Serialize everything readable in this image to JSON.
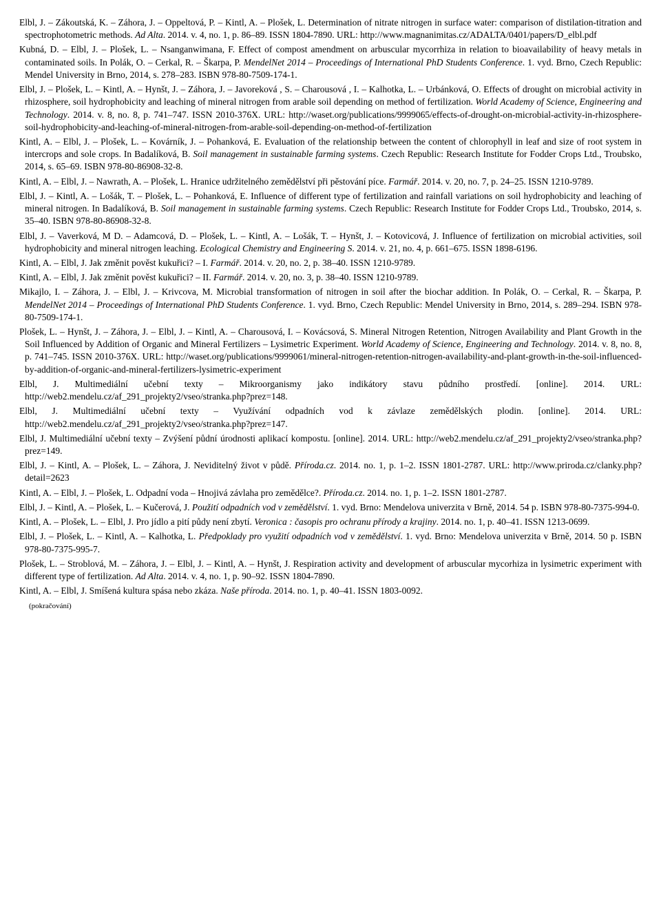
{
  "entries": [
    {
      "text": "Elbl, J. – Zákoutská, K. – Záhora, J. – Oppeltová, P. – Kintl, A. – Plošek, L. Determination of nitrate nitrogen in surface water: comparison of distilation-titration and spectrophotometric methods. |i|Ad Alta|/i|. 2014. v. 4, no. 1, p. 86–89. ISSN 1804-7890. URL: http://www.magnanimitas.cz/ADALTA/0401/papers/D_elbl.pdf"
    },
    {
      "text": "Kubná, D. – Elbl, J. – Plošek, L. – Nsanganwimana, F. Effect of compost amendment on arbuscular mycorrhiza in relation to bioavailability of heavy metals in contaminated soils. In Polák, O. – Cerkal, R. – Škarpa, P. |i|MendelNet 2014 – Proceedings of International PhD Students Conference|/i|. 1. vyd. Brno, Czech Republic: Mendel University in Brno, 2014, s. 278–283. ISBN 978-80-7509-174-1."
    },
    {
      "text": "Elbl, J. – Plošek, L. – Kintl, A. – Hynšt, J. – Záhora, J. – Javoreková , S. – Charousová , I. – Kalhotka, L. – Urbánková, O. Effects of drought on microbial activity in rhizosphere, soil hydrophobicity and leaching of mineral nitrogen from arable soil depending on method of fertilization. |i|World Academy of Science, Engineering and Technology|/i|. 2014. v. 8, no. 8, p. 741–747. ISSN 2010-376X. URL: http://waset.org/publications/9999065/effects-of-drought-on-microbial-activity-in-rhizosphere-soil-hydrophobicity-and-leaching-of-mineral-nitrogen-from-arable-soil-depending-on-method-of-fertilization"
    },
    {
      "text": "Kintl, A. – Elbl, J. – Plošek, L. – Kovárník, J. – Pohanková, E. Evaluation of the relationship between the content of chlorophyll in leaf and size of root system in intercrops and sole crops. In Badalíková, B. |i|Soil management in sustainable farming systems|/i|. Czech Republic: Research Institute for Fodder Crops Ltd., Troubsko, 2014, s. 65–69. ISBN 978-80-86908-32-8."
    },
    {
      "text": "Kintl, A. – Elbl, J. – Nawrath, A. – Plošek, L. Hranice udržitelného zemědělství při pěstování píce. |i|Farmář|/i|. 2014. v. 20, no. 7, p. 24–25. ISSN 1210-9789."
    },
    {
      "text": "Elbl, J. – Kintl, A. – Lošák, T. – Plošek, L. – Pohanková, E. Influence of different type of fertilization and rainfall variations on soil hydrophobicity and leaching of mineral nitrogen. In Badalíková, B. |i|Soil management in sustainable farming systems|/i|. Czech Republic: Research Institute for Fodder Crops Ltd., Troubsko, 2014, s. 35–40. ISBN 978-80-86908-32-8."
    },
    {
      "text": "Elbl, J. – Vaverková, M D. – Adamcová, D. – Plošek, L. – Kintl, A. – Lošák, T. – Hynšt, J. – Kotovicová, J. Influence of fertilization on microbial activities, soil hydrophobicity and mineral nitrogen leaching. |i|Ecological Chemistry and Engineering S|/i|. 2014. v. 21, no. 4, p. 661–675. ISSN 1898-6196."
    },
    {
      "text": "Kintl, A. – Elbl, J. Jak změnit pověst kukuřici? – I. |i|Farmář|/i|. 2014. v. 20, no. 2, p. 38–40. ISSN 1210-9789."
    },
    {
      "text": "Kintl, A. – Elbl, J. Jak změnit pověst kukuřici? – II. |i|Farmář|/i|. 2014. v. 20, no. 3, p. 38–40. ISSN 1210-9789."
    },
    {
      "text": "Mikajlo, I. – Záhora, J. – Elbl, J. – Krivcova, M. Microbial transformation of nitrogen in soil after the biochar addition. In Polák, O. – Cerkal, R. – Škarpa, P. |i|MendelNet 2014 – Proceedings of International PhD Students Conference|/i|. 1. vyd. Brno, Czech Republic: Mendel University in Brno, 2014, s. 289–294. ISBN 978-80-7509-174-1."
    },
    {
      "text": "Plošek, L. – Hynšt, J. – Záhora, J. – Elbl, J. – Kintl, A. – Charousová, I. – Kovácsová, S. Mineral Nitrogen Retention, Nitrogen Availability and Plant Growth in the Soil Influenced by Addition of Organic and Mineral Fertilizers – Lysimetric Experiment. |i|World Academy of Science, Engineering and Technology|/i|. 2014. v. 8, no. 8, p. 741–745. ISSN 2010-376X. URL: http://waset.org/publications/9999061/mineral-nitrogen-retention-nitrogen-availability-and-plant-growth-in-the-soil-influenced-by-addition-of-organic-and-mineral-fertilizers-lysimetric-experiment"
    },
    {
      "text": "Elbl, J. Multimediální učební texty – Mikroorganismy jako indikátory stavu půdního prostředí. [online]. 2014. URL: http://web2.mendelu.cz/af_291_projekty2/vseo/stranka.php?prez=148."
    },
    {
      "text": "Elbl, J. Multimediální učební texty – Využívání odpadních vod k závlaze zemědělských plodin. [online]. 2014. URL: http://web2.mendelu.cz/af_291_projekty2/vseo/stranka.php?prez=147."
    },
    {
      "text": "Elbl, J. Multimediální učební texty – Zvýšení půdní úrodnosti aplikací kompostu. [online]. 2014. URL: http://web2.mendelu.cz/af_291_projekty2/vseo/stranka.php?prez=149."
    },
    {
      "text": "Elbl, J. – Kintl, A. – Plošek, L. – Záhora, J. Neviditelný život v půdě. |i|Příroda.cz|/i|. 2014. no. 1, p. 1–2. ISSN 1801-2787. URL: http://www.priroda.cz/clanky.php?detail=2623"
    },
    {
      "text": "Kintl, A. – Elbl, J. – Plošek, L. Odpadní voda – Hnojivá závlaha pro zemědělce?. |i|Příroda.cz|/i|. 2014. no. 1, p. 1–2. ISSN 1801-2787."
    },
    {
      "text": "Elbl, J. – Kintl, A. – Plošek, L. – Kučerová, J. |i|Použití odpadních vod v zemědělství|/i|. 1. vyd. Brno: Mendelova univerzita v Brně, 2014. 54 p. ISBN 978-80-7375-994-0."
    },
    {
      "text": "Kintl, A. – Plošek, L. – Elbl, J. Pro jídlo a pití půdy není zbytí. |i|Veronica : časopis pro ochranu přírody a krajiny|/i|. 2014. no. 1, p. 40–41. ISSN 1213-0699."
    },
    {
      "text": "Elbl, J. – Plošek, L. – Kintl, A. – Kalhotka, L. |i|Předpoklady pro využití odpadních vod v zemědělství|/i|. 1. vyd. Brno: Mendelova univerzita v Brně, 2014. 50 p. ISBN 978-80-7375-995-7."
    },
    {
      "text": "Plošek, L. – Stroblová, M. – Záhora, J. – Elbl, J. – Kintl, A. – Hynšt, J. Respiration activity and development of arbuscular mycorhiza in lysimetric experiment with different type of fertilization. |i|Ad Alta|/i|. 2014. v. 4, no. 1, p. 90–92. ISSN 1804-7890."
    },
    {
      "text": "Kintl, A. – Elbl, J. Smíšená kultura spása nebo zkáza. |i|Naše příroda|/i|. 2014. no. 1, p. 40–41. ISSN 1803-0092."
    }
  ],
  "continuation": "(pokračování)"
}
